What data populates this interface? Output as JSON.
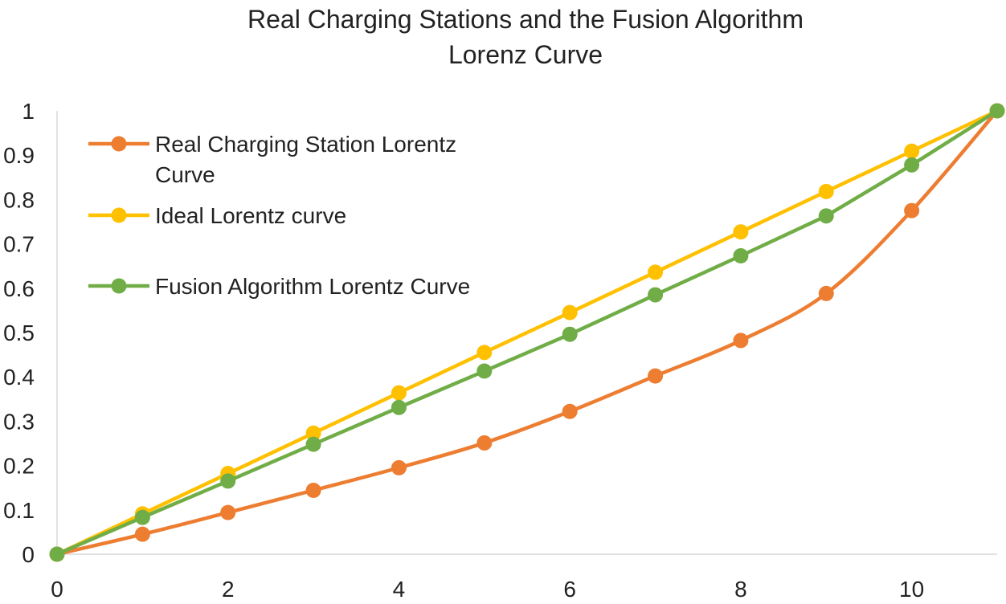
{
  "chart_data": {
    "type": "line",
    "title": [
      "Real Charging Stations and the Fusion Algorithm",
      "Lorenz Curve"
    ],
    "xlabel": "",
    "ylabel": "",
    "xlim": [
      0,
      11
    ],
    "ylim": [
      0,
      1
    ],
    "x_ticks": [
      "0",
      "2",
      "4",
      "6",
      "8",
      "10"
    ],
    "y_ticks": [
      "0",
      "0.1",
      "0.2",
      "0.3",
      "0.4",
      "0.5",
      "0.6",
      "0.7",
      "0.8",
      "0.9",
      "1"
    ],
    "grid": false,
    "legend_position": "top-left",
    "x": [
      0,
      1,
      2,
      3,
      4,
      5,
      6,
      7,
      8,
      9,
      10,
      11
    ],
    "series": [
      {
        "name": "Real Charging Station Lorentz Curve",
        "legend_lines": [
          "Real Charging Station Lorentz",
          "Curve"
        ],
        "color": "#ED7D31",
        "smooth": true,
        "values": [
          0,
          0.045,
          0.094,
          0.144,
          0.195,
          0.251,
          0.322,
          0.402,
          0.482,
          0.588,
          0.775,
          1.0
        ]
      },
      {
        "name": "Ideal Lorentz curve",
        "legend_lines": [
          "Ideal Lorentz curve"
        ],
        "color": "#FFC000",
        "smooth": false,
        "values": [
          0,
          0.091,
          0.182,
          0.273,
          0.364,
          0.455,
          0.545,
          0.636,
          0.727,
          0.818,
          0.909,
          1.0
        ]
      },
      {
        "name": "Fusion Algorithm Lorentz Curve",
        "legend_lines": [
          "Fusion Algorithm Lorentz Curve"
        ],
        "color": "#70AD47",
        "smooth": false,
        "values": [
          0,
          0.083,
          0.165,
          0.248,
          0.331,
          0.413,
          0.496,
          0.585,
          0.673,
          0.763,
          0.878,
          1.0
        ]
      }
    ]
  }
}
